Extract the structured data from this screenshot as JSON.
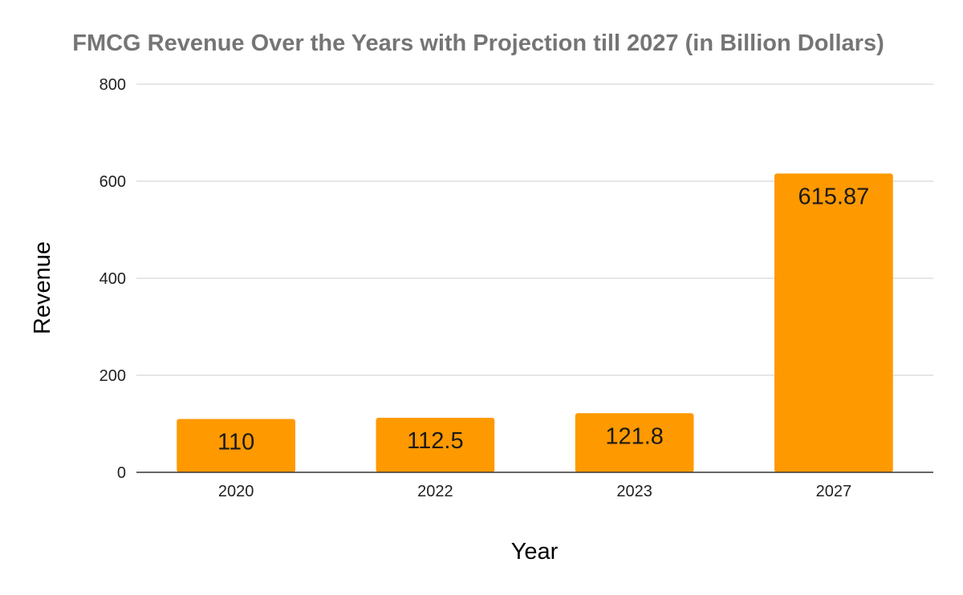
{
  "chart_data": {
    "type": "bar",
    "title": "FMCG Revenue Over the Years with Projection till 2027 (in Billion Dollars)",
    "xlabel": "Year",
    "ylabel": "Revenue",
    "categories": [
      "2020",
      "2022",
      "2023",
      "2027"
    ],
    "values": [
      110,
      112.5,
      121.8,
      615.87
    ],
    "data_labels": [
      "110",
      "112.5",
      "121.8",
      "615.87"
    ],
    "ylim": [
      0,
      800
    ],
    "yticks": [
      0,
      200,
      400,
      600,
      800
    ],
    "ytick_labels": [
      "0",
      "200",
      "400",
      "600",
      "800"
    ],
    "grid": true,
    "legend": "none",
    "colors": {
      "bar": "#ff9900",
      "grid": "#cccccc",
      "axis": "#333333",
      "title": "#757575"
    }
  }
}
